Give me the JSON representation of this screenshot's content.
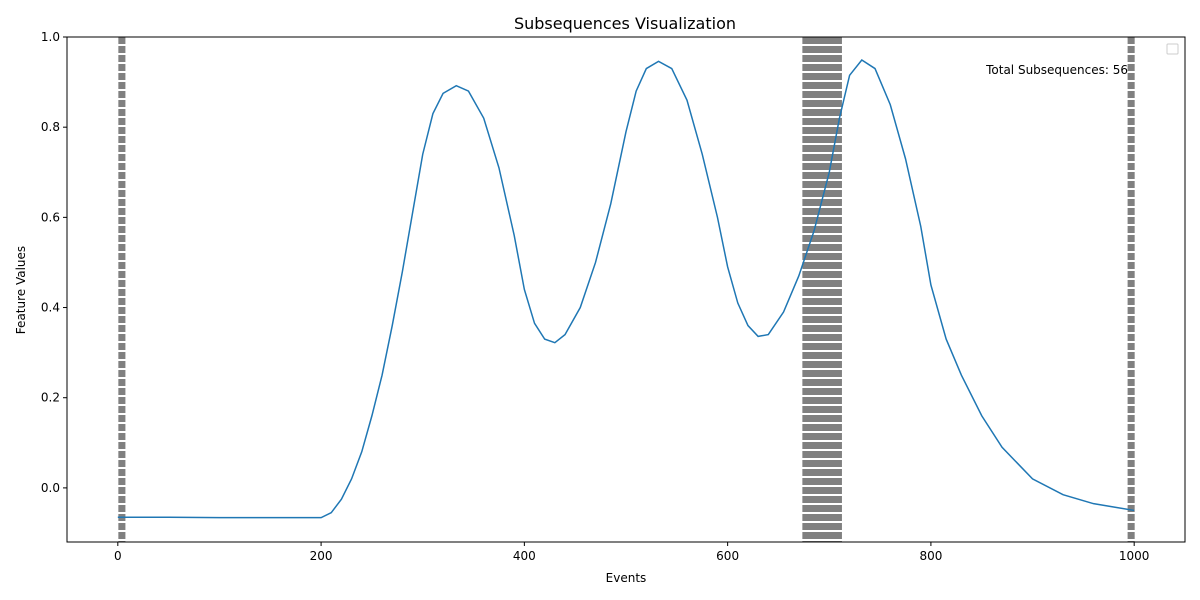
{
  "chart_data": {
    "type": "line",
    "title": "Subsequences Visualization",
    "xlabel": "Events",
    "ylabel": "Feature Values",
    "xlim": [
      -50,
      1050
    ],
    "ylim": [
      -0.12,
      1.0
    ],
    "xticks": [
      0,
      200,
      400,
      600,
      800,
      1000
    ],
    "yticks": [
      0.0,
      0.2,
      0.4,
      0.6,
      0.8,
      1.0
    ],
    "xtick_labels": [
      "0",
      "200",
      "400",
      "600",
      "800",
      "1000"
    ],
    "ytick_labels": [
      "0.0",
      "0.2",
      "0.4",
      "0.6",
      "0.8",
      "1.0"
    ],
    "grid": false,
    "legend": "top-right (empty)",
    "annotation": "Total Subsequences: 56",
    "line_color": "#1f77b4",
    "marker_line_color": "#808080",
    "series": [
      {
        "x": [
          0,
          50,
          100,
          150,
          200,
          210,
          220,
          230,
          240,
          250,
          260,
          270,
          280,
          290,
          300,
          310,
          320,
          333,
          345,
          360,
          375,
          390,
          400,
          410,
          420,
          430,
          440,
          455,
          470,
          485,
          500,
          510,
          520,
          532,
          545,
          560,
          575,
          590,
          600,
          610,
          620,
          630,
          640,
          655,
          670,
          685,
          700,
          710,
          720,
          732,
          745,
          760,
          775,
          790,
          800,
          815,
          830,
          850,
          870,
          900,
          930,
          960,
          1000
        ],
        "y": [
          -0.065,
          -0.065,
          -0.066,
          -0.066,
          -0.066,
          -0.055,
          -0.025,
          0.02,
          0.08,
          0.16,
          0.25,
          0.36,
          0.48,
          0.61,
          0.74,
          0.83,
          0.875,
          0.892,
          0.88,
          0.82,
          0.71,
          0.56,
          0.44,
          0.365,
          0.33,
          0.322,
          0.34,
          0.4,
          0.5,
          0.63,
          0.79,
          0.88,
          0.93,
          0.946,
          0.93,
          0.86,
          0.74,
          0.6,
          0.49,
          0.41,
          0.36,
          0.336,
          0.34,
          0.39,
          0.47,
          0.57,
          0.7,
          0.82,
          0.915,
          0.949,
          0.93,
          0.85,
          0.73,
          0.58,
          0.45,
          0.33,
          0.25,
          0.16,
          0.09,
          0.02,
          -0.015,
          -0.035,
          -0.05
        ]
      }
    ],
    "vertical_dashed_lines": [
      2,
      3,
      4,
      5,
      6,
      675,
      677,
      679,
      681,
      683,
      685,
      687,
      689,
      691,
      693,
      695,
      697,
      699,
      701,
      703,
      705,
      707,
      709,
      711,
      995,
      996,
      997,
      998,
      999
    ]
  }
}
